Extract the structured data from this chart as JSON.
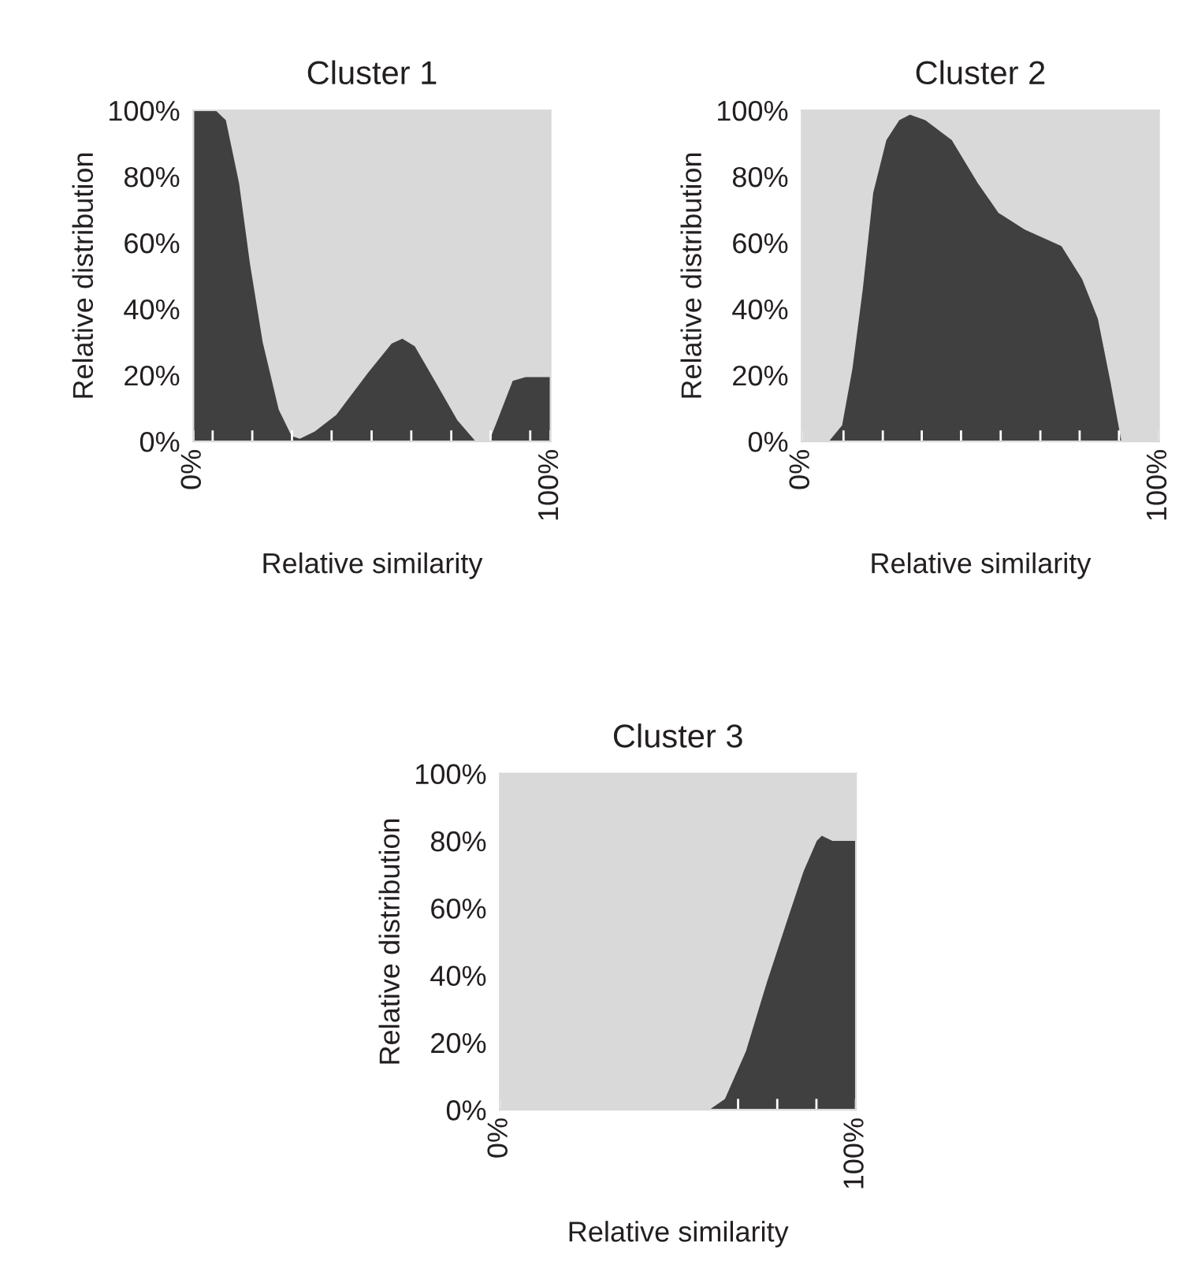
{
  "chart_data": [
    {
      "type": "area",
      "title": "Cluster 1",
      "xlabel": "Relative similarity",
      "ylabel": "Relative distribution",
      "x": [
        0,
        6.2,
        9.1,
        12.8,
        15.8,
        19.4,
        23.9,
        27.5,
        29.8,
        34,
        40,
        48.9,
        55.5,
        58.5,
        62,
        68,
        73.9,
        79,
        82.8,
        85.7,
        89.4,
        93,
        100
      ],
      "values": [
        100,
        100,
        97,
        78,
        54,
        30,
        9.6,
        1.6,
        0.8,
        3,
        8,
        20.7,
        29.5,
        31,
        28.7,
        17.5,
        6.4,
        0,
        0,
        8,
        18.3,
        19.4,
        19.4
      ],
      "color": "#404040",
      "xlim": [
        0,
        100
      ],
      "ylim": [
        0,
        100
      ],
      "xticks": [
        {
          "value": 0,
          "label": "0%"
        },
        {
          "value": 5.4,
          "label": null
        },
        {
          "value": 16.5,
          "label": null
        },
        {
          "value": 27.6,
          "label": null
        },
        {
          "value": 38.7,
          "label": null
        },
        {
          "value": 49.9,
          "label": null
        },
        {
          "value": 61,
          "label": null
        },
        {
          "value": 72.2,
          "label": null
        },
        {
          "value": 83.2,
          "label": null
        },
        {
          "value": 94.3,
          "label": null
        },
        {
          "value": 100,
          "label": "100%"
        }
      ],
      "yticks": [
        {
          "value": 0,
          "label": "0%"
        },
        {
          "value": 20,
          "label": "20%"
        },
        {
          "value": 40,
          "label": "40%"
        },
        {
          "value": 60,
          "label": "60%"
        },
        {
          "value": 80,
          "label": "80%"
        },
        {
          "value": 100,
          "label": "100%"
        }
      ],
      "grid": false,
      "legend": false
    },
    {
      "type": "area",
      "title": "Cluster 2",
      "xlabel": "Relative similarity",
      "ylabel": "Relative distribution",
      "x": [
        0,
        7.6,
        11.3,
        14.2,
        17.1,
        20,
        23.7,
        27.3,
        30.3,
        34.6,
        42,
        49.3,
        55.1,
        62.4,
        72.7,
        78.5,
        82.9,
        86.5,
        89.5,
        100
      ],
      "values": [
        0,
        0,
        4.8,
        22,
        46,
        75,
        91,
        97,
        98.7,
        97,
        91,
        78,
        69,
        64,
        59,
        49,
        37,
        17.5,
        0,
        0
      ],
      "color": "#404040",
      "xlim": [
        0,
        100
      ],
      "ylim": [
        0,
        100
      ],
      "xticks": [
        {
          "value": 0,
          "label": "0%"
        },
        {
          "value": 11.7,
          "label": null
        },
        {
          "value": 22.7,
          "label": null
        },
        {
          "value": 33.6,
          "label": null
        },
        {
          "value": 44.6,
          "label": null
        },
        {
          "value": 55.7,
          "label": null
        },
        {
          "value": 66.8,
          "label": null
        },
        {
          "value": 77.8,
          "label": null
        },
        {
          "value": 88.8,
          "label": null
        },
        {
          "value": 100,
          "label": "100%"
        }
      ],
      "yticks": [
        {
          "value": 0,
          "label": "0%"
        },
        {
          "value": 20,
          "label": "20%"
        },
        {
          "value": 40,
          "label": "40%"
        },
        {
          "value": 60,
          "label": "60%"
        },
        {
          "value": 80,
          "label": "80%"
        },
        {
          "value": 100,
          "label": "100%"
        }
      ],
      "grid": false,
      "legend": false
    },
    {
      "type": "area",
      "title": "Cluster 3",
      "xlabel": "Relative similarity",
      "ylabel": "Relative distribution",
      "x": [
        0,
        58.8,
        63.2,
        69.1,
        75,
        80.9,
        85.3,
        89,
        90.4,
        93.4,
        100
      ],
      "values": [
        0,
        0,
        3.2,
        17.4,
        38,
        57,
        71,
        80,
        81.5,
        80,
        80
      ],
      "color": "#404040",
      "xlim": [
        0,
        100
      ],
      "ylim": [
        0,
        100
      ],
      "xticks": [
        {
          "value": 0,
          "label": "0%"
        },
        {
          "value": 66.9,
          "label": null
        },
        {
          "value": 77.9,
          "label": null
        },
        {
          "value": 88.9,
          "label": null
        },
        {
          "value": 100,
          "label": "100%"
        }
      ],
      "yticks": [
        {
          "value": 0,
          "label": "0%"
        },
        {
          "value": 20,
          "label": "20%"
        },
        {
          "value": 40,
          "label": "40%"
        },
        {
          "value": 60,
          "label": "60%"
        },
        {
          "value": 80,
          "label": "80%"
        },
        {
          "value": 100,
          "label": "100%"
        }
      ],
      "grid": false,
      "legend": false
    }
  ]
}
